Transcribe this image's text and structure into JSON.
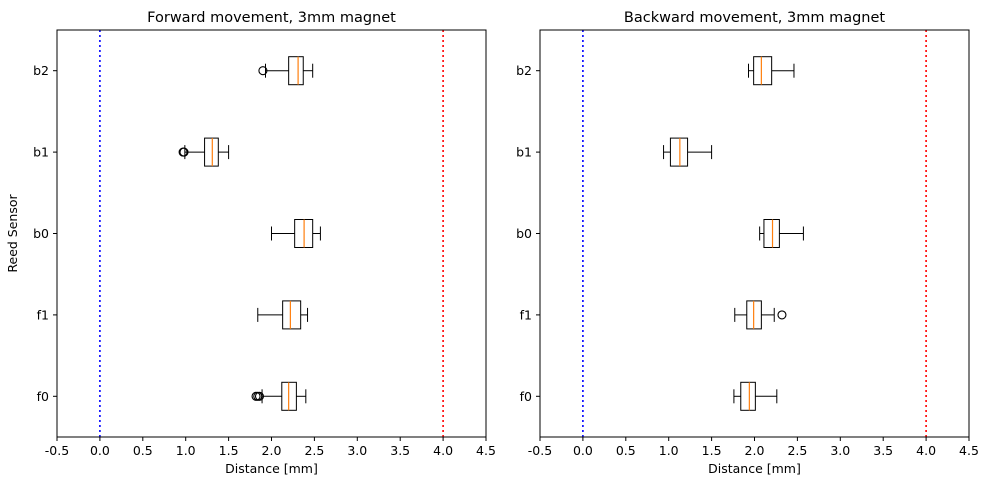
{
  "chart_data": [
    {
      "type": "boxplot",
      "orientation": "horizontal",
      "title": "Forward movement, 3mm magnet",
      "xlabel": "Distance [mm]",
      "ylabel": "Reed Sensor",
      "xlim": [
        -0.5,
        4.5
      ],
      "xticks": [
        "-0.5",
        "0.0",
        "0.5",
        "1.0",
        "1.5",
        "2.0",
        "2.5",
        "3.0",
        "3.5",
        "4.0",
        "4.5"
      ],
      "xtick_values": [
        -0.5,
        0.0,
        0.5,
        1.0,
        1.5,
        2.0,
        2.5,
        3.0,
        3.5,
        4.0,
        4.5
      ],
      "categories": [
        "f0",
        "f1",
        "b0",
        "b1",
        "b2"
      ],
      "boxes": [
        {
          "label": "f0",
          "whisker_low": 1.89,
          "q1": 2.12,
          "median": 2.2,
          "q3": 2.29,
          "whisker_high": 2.4,
          "outliers": [
            1.82,
            1.84,
            1.86
          ]
        },
        {
          "label": "f1",
          "whisker_low": 1.84,
          "q1": 2.13,
          "median": 2.22,
          "q3": 2.34,
          "whisker_high": 2.42,
          "outliers": []
        },
        {
          "label": "b0",
          "whisker_low": 2.0,
          "q1": 2.27,
          "median": 2.38,
          "q3": 2.48,
          "whisker_high": 2.57,
          "outliers": []
        },
        {
          "label": "b1",
          "whisker_low": 0.99,
          "q1": 1.22,
          "median": 1.31,
          "q3": 1.38,
          "whisker_high": 1.5,
          "outliers": [
            0.97,
            0.98
          ]
        },
        {
          "label": "b2",
          "whisker_low": 1.93,
          "q1": 2.2,
          "median": 2.31,
          "q3": 2.37,
          "whisker_high": 2.48,
          "outliers": [
            1.9
          ]
        }
      ],
      "reference_lines": [
        {
          "x": 0.0,
          "color": "#0000ff",
          "style": "dotted"
        },
        {
          "x": 4.0,
          "color": "#ff0000",
          "style": "dotted"
        }
      ],
      "median_color": "#ff7f0e",
      "grid": false
    },
    {
      "type": "boxplot",
      "orientation": "horizontal",
      "title": "Backward movement, 3mm magnet",
      "xlabel": "Distance [mm]",
      "ylabel": "",
      "xlim": [
        -0.5,
        4.5
      ],
      "xticks": [
        "-0.5",
        "0.0",
        "0.5",
        "1.0",
        "1.5",
        "2.0",
        "2.5",
        "3.0",
        "3.5",
        "4.0",
        "4.5"
      ],
      "xtick_values": [
        -0.5,
        0.0,
        0.5,
        1.0,
        1.5,
        2.0,
        2.5,
        3.0,
        3.5,
        4.0,
        4.5
      ],
      "categories": [
        "f0",
        "f1",
        "b0",
        "b1",
        "b2"
      ],
      "boxes": [
        {
          "label": "f0",
          "whisker_low": 1.76,
          "q1": 1.84,
          "median": 1.94,
          "q3": 2.01,
          "whisker_high": 2.26,
          "outliers": []
        },
        {
          "label": "f1",
          "whisker_low": 1.77,
          "q1": 1.91,
          "median": 1.99,
          "q3": 2.08,
          "whisker_high": 2.23,
          "outliers": [
            2.32
          ]
        },
        {
          "label": "b0",
          "whisker_low": 2.06,
          "q1": 2.11,
          "median": 2.21,
          "q3": 2.29,
          "whisker_high": 2.57,
          "outliers": []
        },
        {
          "label": "b1",
          "whisker_low": 0.94,
          "q1": 1.02,
          "median": 1.13,
          "q3": 1.22,
          "whisker_high": 1.5,
          "outliers": []
        },
        {
          "label": "b2",
          "whisker_low": 1.93,
          "q1": 1.99,
          "median": 2.08,
          "q3": 2.2,
          "whisker_high": 2.46,
          "outliers": []
        }
      ],
      "reference_lines": [
        {
          "x": 0.0,
          "color": "#0000ff",
          "style": "dotted"
        },
        {
          "x": 4.0,
          "color": "#ff0000",
          "style": "dotted"
        }
      ],
      "median_color": "#ff7f0e",
      "grid": false
    }
  ]
}
